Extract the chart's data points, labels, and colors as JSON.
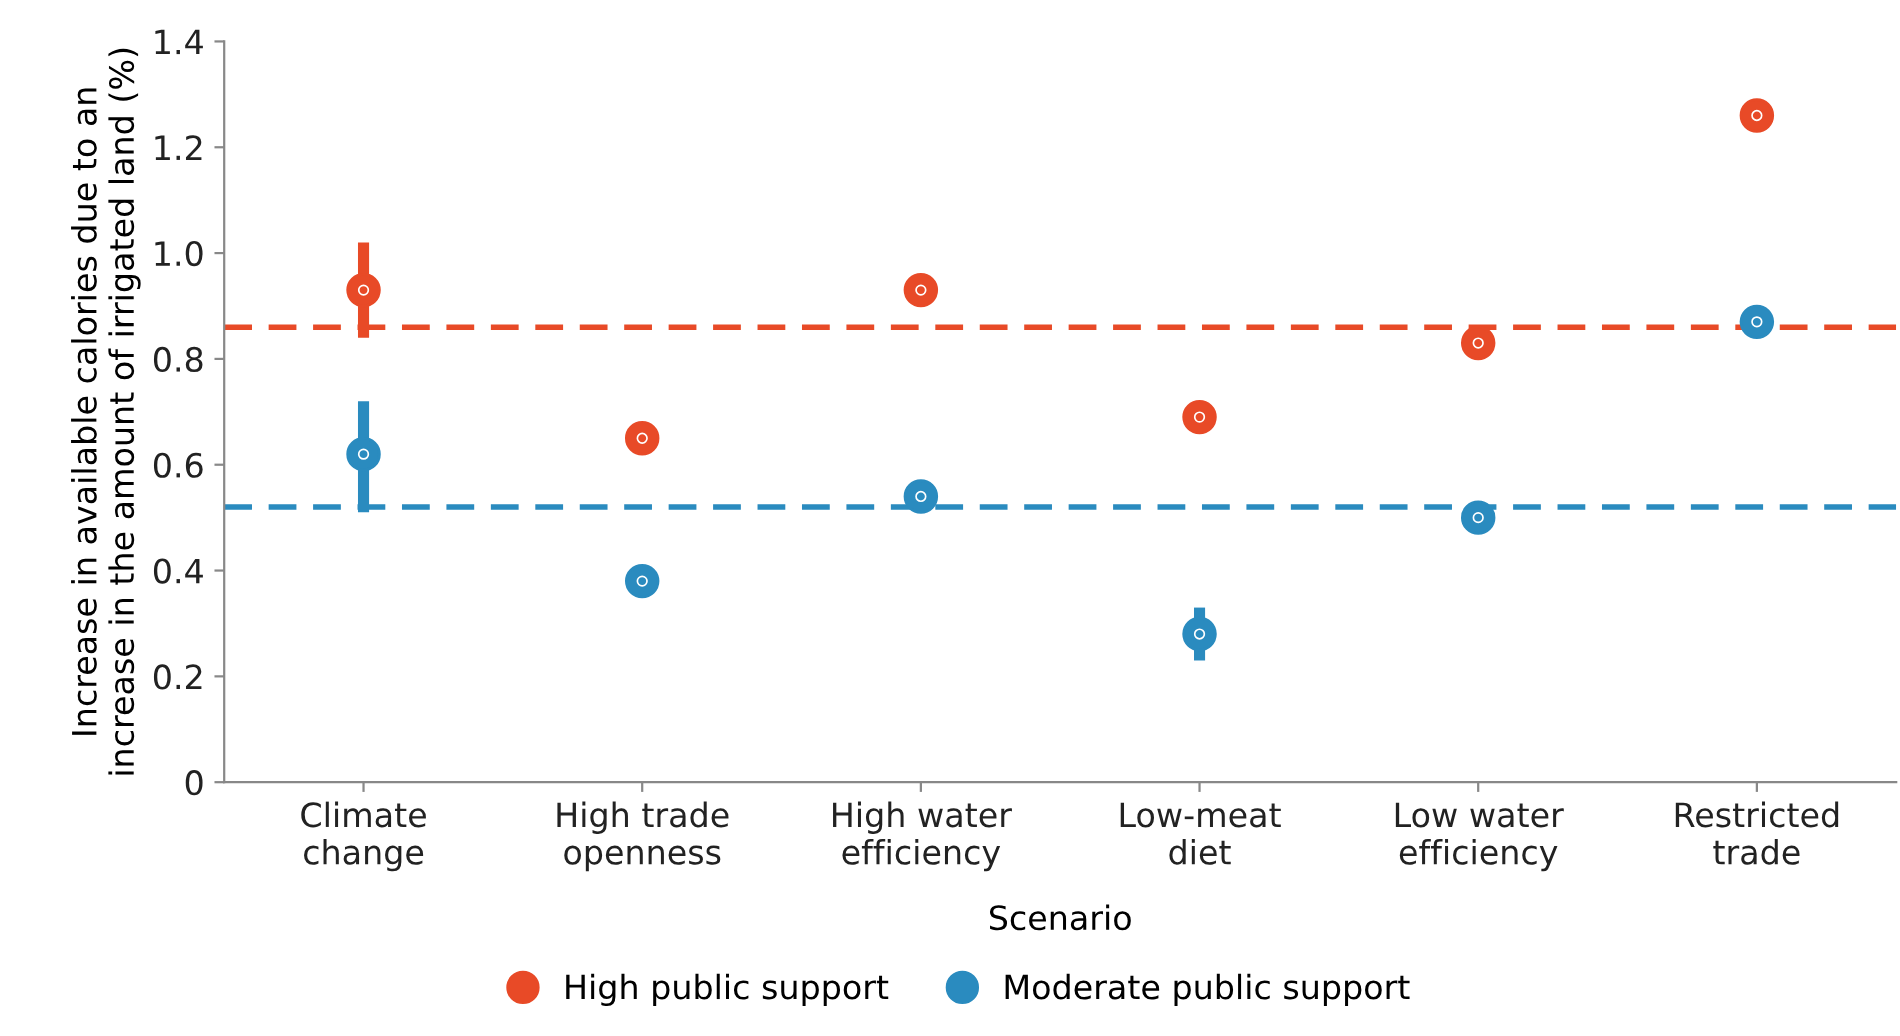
{
  "chart_data": {
    "type": "scatter",
    "xlabel": "Scenario",
    "ylabel": "Increase in available calories due to an\nincrease in the amount of irrigated land (%)",
    "categories": [
      "Climate\nchange",
      "High trade\nopenness",
      "High water\nefficiency",
      "Low-meat\ndiet",
      "Low water\nefficiency",
      "Restricted\ntrade"
    ],
    "series": [
      {
        "name": "High public support",
        "color": "#e84a27",
        "values": [
          0.93,
          0.65,
          0.93,
          0.69,
          0.83,
          1.26
        ],
        "errors": [
          [
            0.84,
            1.02
          ],
          null,
          null,
          null,
          null,
          null
        ]
      },
      {
        "name": "Moderate public support",
        "color": "#2a8bbf",
        "values": [
          0.62,
          0.38,
          0.54,
          0.28,
          0.5,
          0.87
        ],
        "errors": [
          [
            0.51,
            0.72
          ],
          null,
          null,
          [
            0.23,
            0.33
          ],
          null,
          null
        ]
      }
    ],
    "ref_lines": [
      {
        "axis": "y",
        "value": 0.86,
        "color": "#e84a27",
        "line_style": "dashed"
      },
      {
        "axis": "y",
        "value": 0.52,
        "color": "#2a8bbf",
        "line_style": "dashed"
      }
    ],
    "ylim": [
      0,
      1.4
    ],
    "yticks": [
      {
        "value": 0,
        "label": "0"
      },
      {
        "value": 0.2,
        "label": "0.2"
      },
      {
        "value": 0.4,
        "label": "0.4"
      },
      {
        "value": 0.6,
        "label": "0.6"
      },
      {
        "value": 0.8,
        "label": "0.8"
      },
      {
        "value": 1,
        "label": "1.0"
      },
      {
        "value": 1.2,
        "label": "1.2"
      },
      {
        "value": 1.4,
        "label": "1.4"
      }
    ],
    "marker": "circle",
    "grid": false,
    "legend": "bottom"
  }
}
